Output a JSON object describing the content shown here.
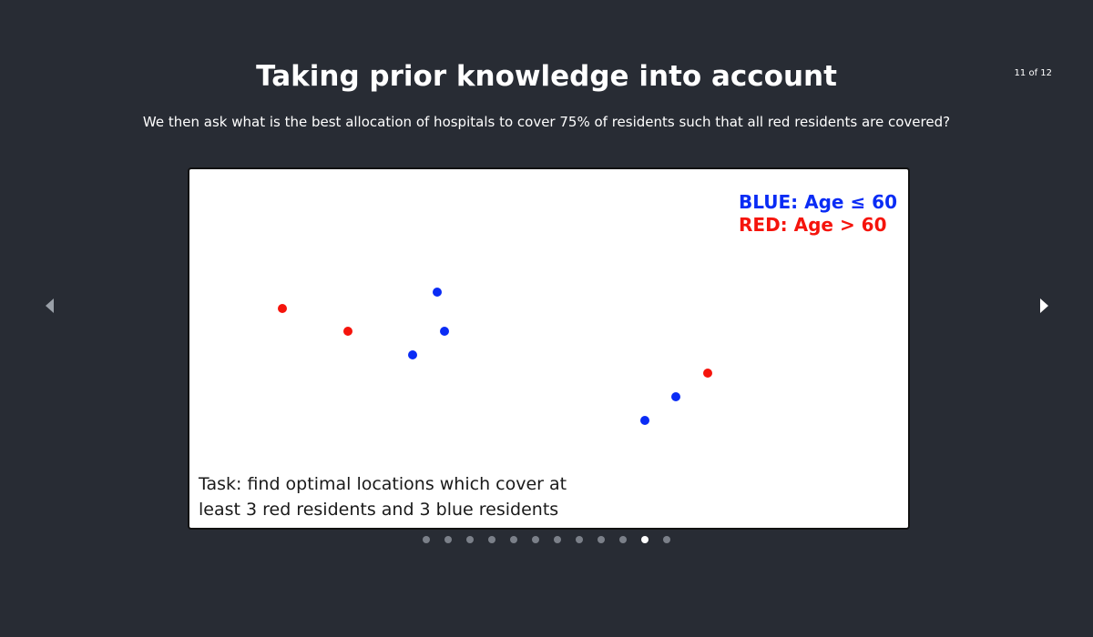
{
  "slide": {
    "title": "Taking prior knowledge into account",
    "subtitle": "We then ask what is the best allocation of hospitals to cover 75% of residents such that all red residents are covered?",
    "counter": "11 of 12",
    "current_index": 11,
    "total": 12
  },
  "figure": {
    "legend_blue": "BLUE: Age ≤ 60",
    "legend_red": "RED: Age > 60",
    "task_line1": "Task: find optimal locations which cover at",
    "task_line2": "least 3 red residents and 3 blue residents",
    "colors": {
      "blue": "#0a2cf5",
      "red": "#f5140c"
    },
    "residents": [
      {
        "group": "red"
      },
      {
        "group": "red"
      },
      {
        "group": "blue"
      },
      {
        "group": "blue"
      },
      {
        "group": "blue"
      },
      {
        "group": "red"
      },
      {
        "group": "blue"
      },
      {
        "group": "blue"
      }
    ]
  },
  "nav": {
    "prev_icon": "chevron-left-icon",
    "next_icon": "chevron-right-icon"
  },
  "colors": {
    "background": "#282c34",
    "dot_inactive": "#7b8089",
    "dot_active": "#ffffff"
  }
}
